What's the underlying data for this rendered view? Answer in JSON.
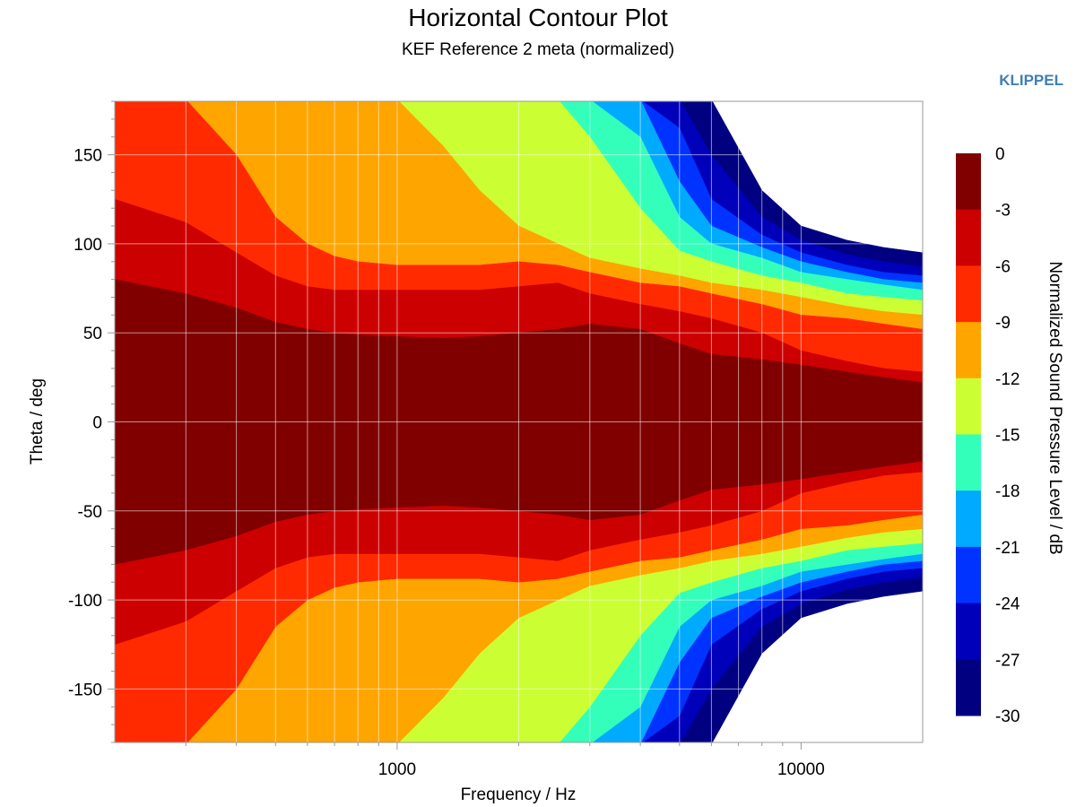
{
  "header": {
    "title": "Horizontal Contour Plot",
    "subtitle": "KEF Reference 2 meta (normalized)",
    "brand": "KLIPPEL"
  },
  "chart_data": {
    "type": "heatmap",
    "title": "Horizontal Contour Plot",
    "subtitle": "KEF Reference 2 meta (normalized)",
    "xlabel": "Frequency / Hz",
    "ylabel": "Theta / deg",
    "x_scale": "log",
    "xlim": [
      200,
      20000
    ],
    "ylim": [
      -180,
      180
    ],
    "x_ticks": [
      1000,
      10000
    ],
    "x_tick_labels": [
      "1000",
      "10000"
    ],
    "y_ticks": [
      150,
      100,
      50,
      0,
      -50,
      -100,
      -150
    ],
    "y_tick_labels": [
      "150",
      "100",
      "50",
      "0",
      "-50",
      "-100",
      "-150"
    ],
    "grid": true,
    "colorbar": {
      "label": "Normalized Sound Pressure Level / dB",
      "ticks": [
        0,
        -3,
        -6,
        -9,
        -12,
        -15,
        -18,
        -21,
        -24,
        -27,
        -30
      ],
      "tick_labels": [
        "0",
        "-3",
        "-6",
        "-9",
        "-12",
        "-15",
        "-18",
        "-21",
        "-24",
        "-27",
        "-30"
      ],
      "levels": [
        {
          "range": [
            -3,
            0
          ],
          "color": "#800000"
        },
        {
          "range": [
            -6,
            -3
          ],
          "color": "#cc0000"
        },
        {
          "range": [
            -9,
            -6
          ],
          "color": "#ff2a00"
        },
        {
          "range": [
            -12,
            -9
          ],
          "color": "#ffa500"
        },
        {
          "range": [
            -15,
            -12
          ],
          "color": "#ccff33"
        },
        {
          "range": [
            -18,
            -15
          ],
          "color": "#33ffbb"
        },
        {
          "range": [
            -21,
            -18
          ],
          "color": "#00aaff"
        },
        {
          "range": [
            -24,
            -21
          ],
          "color": "#0033ff"
        },
        {
          "range": [
            -27,
            -24
          ],
          "color": "#0000bb"
        },
        {
          "range": [
            -30,
            -27
          ],
          "color": "#000080"
        }
      ]
    },
    "band_edges_deg": {
      "freqs": [
        200,
        300,
        400,
        500,
        600,
        700,
        800,
        1000,
        1300,
        1600,
        2000,
        2500,
        3000,
        4000,
        5000,
        6000,
        8000,
        10000,
        13000,
        16000,
        20000
      ],
      "edges": [
        [
          80,
          72,
          64,
          56,
          52,
          50,
          49,
          48,
          47,
          48,
          50,
          52,
          55,
          52,
          44,
          38,
          35,
          32,
          28,
          25,
          22
        ],
        [
          125,
          112,
          95,
          82,
          76,
          74,
          74,
          74,
          74,
          74,
          76,
          78,
          72,
          66,
          62,
          58,
          50,
          40,
          34,
          30,
          28
        ],
        [
          181,
          181,
          150,
          115,
          100,
          93,
          90,
          88,
          88,
          88,
          90,
          88,
          84,
          78,
          76,
          72,
          66,
          60,
          58,
          55,
          52
        ],
        [
          181,
          181,
          181,
          181,
          181,
          181,
          181,
          181,
          155,
          130,
          110,
          100,
          92,
          86,
          82,
          78,
          74,
          70,
          65,
          62,
          60
        ],
        [
          181,
          181,
          181,
          181,
          181,
          181,
          181,
          181,
          181,
          181,
          181,
          181,
          160,
          120,
          96,
          90,
          82,
          78,
          72,
          70,
          68
        ],
        [
          181,
          181,
          181,
          181,
          181,
          181,
          181,
          181,
          181,
          181,
          181,
          181,
          181,
          160,
          115,
          100,
          92,
          84,
          80,
          77,
          74
        ],
        [
          181,
          181,
          181,
          181,
          181,
          181,
          181,
          181,
          181,
          181,
          181,
          181,
          181,
          181,
          135,
          110,
          98,
          90,
          84,
          80,
          78
        ],
        [
          181,
          181,
          181,
          181,
          181,
          181,
          181,
          181,
          181,
          181,
          181,
          181,
          181,
          181,
          165,
          125,
          105,
          95,
          88,
          84,
          82
        ],
        [
          181,
          181,
          181,
          181,
          181,
          181,
          181,
          181,
          181,
          181,
          181,
          181,
          181,
          181,
          181,
          150,
          115,
          102,
          94,
          90,
          87
        ],
        [
          181,
          181,
          181,
          181,
          181,
          181,
          181,
          181,
          181,
          181,
          181,
          181,
          181,
          181,
          181,
          181,
          130,
          110,
          102,
          98,
          95
        ]
      ],
      "symmetric_about_zero": true
    }
  }
}
